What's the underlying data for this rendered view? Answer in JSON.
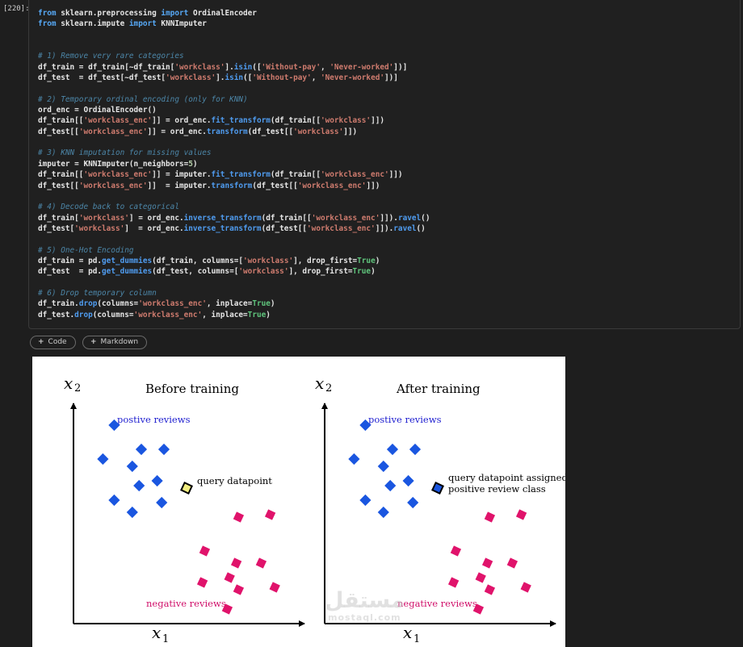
{
  "cell": {
    "execution_count": "[220]:",
    "code_lines": [
      [
        [
          "kw",
          "from "
        ],
        [
          "t",
          "sklearn.preprocessing "
        ],
        [
          "kw",
          "import "
        ],
        [
          "t",
          "OrdinalEncoder"
        ]
      ],
      [
        [
          "kw",
          "from "
        ],
        [
          "t",
          "sklearn.impute "
        ],
        [
          "kw",
          "import "
        ],
        [
          "t",
          "KNNImputer"
        ]
      ],
      [],
      [],
      [
        [
          "cm",
          "# 1) Remove very rare categories"
        ]
      ],
      [
        [
          "t",
          "df_train = df_train[~df_train["
        ],
        [
          "str",
          "'workclass'"
        ],
        [
          "t",
          "]."
        ],
        [
          "fn",
          "isin"
        ],
        [
          "t",
          "(["
        ],
        [
          "str",
          "'Without-pay'"
        ],
        [
          "t",
          ", "
        ],
        [
          "str",
          "'Never-worked'"
        ],
        [
          "t",
          "])]"
        ]
      ],
      [
        [
          "t",
          "df_test  = df_test[~df_test["
        ],
        [
          "str",
          "'workclass'"
        ],
        [
          "t",
          "]."
        ],
        [
          "fn",
          "isin"
        ],
        [
          "t",
          "(["
        ],
        [
          "str",
          "'Without-pay'"
        ],
        [
          "t",
          ", "
        ],
        [
          "str",
          "'Never-worked'"
        ],
        [
          "t",
          "])]"
        ]
      ],
      [],
      [
        [
          "cm",
          "# 2) Temporary ordinal encoding (only for KNN)"
        ]
      ],
      [
        [
          "t",
          "ord_enc = OrdinalEncoder()"
        ]
      ],
      [
        [
          "t",
          "df_train[["
        ],
        [
          "str",
          "'workclass_enc'"
        ],
        [
          "t",
          "]] = ord_enc."
        ],
        [
          "fn",
          "fit_transform"
        ],
        [
          "t",
          "(df_train[["
        ],
        [
          "str",
          "'workclass'"
        ],
        [
          "t",
          "]])"
        ]
      ],
      [
        [
          "t",
          "df_test[["
        ],
        [
          "str",
          "'workclass_enc'"
        ],
        [
          "t",
          "]] = ord_enc."
        ],
        [
          "fn",
          "transform"
        ],
        [
          "t",
          "(df_test[["
        ],
        [
          "str",
          "'workclass'"
        ],
        [
          "t",
          "]])"
        ]
      ],
      [],
      [
        [
          "cm",
          "# 3) KNN imputation for missing values"
        ]
      ],
      [
        [
          "t",
          "imputer = KNNImputer(n_neighbors="
        ],
        [
          "num",
          "5"
        ],
        [
          "t",
          ")"
        ]
      ],
      [
        [
          "t",
          "df_train[["
        ],
        [
          "str",
          "'workclass_enc'"
        ],
        [
          "t",
          "]] = imputer."
        ],
        [
          "fn",
          "fit_transform"
        ],
        [
          "t",
          "(df_train[["
        ],
        [
          "str",
          "'workclass_enc'"
        ],
        [
          "t",
          "]])"
        ]
      ],
      [
        [
          "t",
          "df_test[["
        ],
        [
          "str",
          "'workclass_enc'"
        ],
        [
          "t",
          "]]  = imputer."
        ],
        [
          "fn",
          "transform"
        ],
        [
          "t",
          "(df_test[["
        ],
        [
          "str",
          "'workclass_enc'"
        ],
        [
          "t",
          "]])"
        ]
      ],
      [],
      [
        [
          "cm",
          "# 4) Decode back to categorical"
        ]
      ],
      [
        [
          "t",
          "df_train["
        ],
        [
          "str",
          "'workclass'"
        ],
        [
          "t",
          "] = ord_enc."
        ],
        [
          "fn",
          "inverse_transform"
        ],
        [
          "t",
          "(df_train[["
        ],
        [
          "str",
          "'workclass_enc'"
        ],
        [
          "t",
          "]])."
        ],
        [
          "fn",
          "ravel"
        ],
        [
          "t",
          "()"
        ]
      ],
      [
        [
          "t",
          "df_test["
        ],
        [
          "str",
          "'workclass'"
        ],
        [
          "t",
          "]  = ord_enc."
        ],
        [
          "fn",
          "inverse_transform"
        ],
        [
          "t",
          "(df_test[["
        ],
        [
          "str",
          "'workclass_enc'"
        ],
        [
          "t",
          "]])."
        ],
        [
          "fn",
          "ravel"
        ],
        [
          "t",
          "()"
        ]
      ],
      [],
      [
        [
          "cm",
          "# 5) One-Hot Encoding"
        ]
      ],
      [
        [
          "t",
          "df_train = pd."
        ],
        [
          "fn",
          "get_dummies"
        ],
        [
          "t",
          "(df_train, columns=["
        ],
        [
          "str",
          "'workclass'"
        ],
        [
          "t",
          "], drop_first="
        ],
        [
          "bool",
          "True"
        ],
        [
          "t",
          ")"
        ]
      ],
      [
        [
          "t",
          "df_test  = pd."
        ],
        [
          "fn",
          "get_dummies"
        ],
        [
          "t",
          "(df_test, columns=["
        ],
        [
          "str",
          "'workclass'"
        ],
        [
          "t",
          "], drop_first="
        ],
        [
          "bool",
          "True"
        ],
        [
          "t",
          ")"
        ]
      ],
      [],
      [
        [
          "cm",
          "# 6) Drop temporary column"
        ]
      ],
      [
        [
          "t",
          "df_train."
        ],
        [
          "fn",
          "drop"
        ],
        [
          "t",
          "(columns="
        ],
        [
          "str",
          "'workclass_enc'"
        ],
        [
          "t",
          ", inplace="
        ],
        [
          "bool",
          "True"
        ],
        [
          "t",
          ")"
        ]
      ],
      [
        [
          "t",
          "df_test."
        ],
        [
          "fn",
          "drop"
        ],
        [
          "t",
          "(columns="
        ],
        [
          "str",
          "'workclass_enc'"
        ],
        [
          "t",
          ", inplace="
        ],
        [
          "bool",
          "True"
        ],
        [
          "t",
          ")"
        ]
      ]
    ]
  },
  "toolbar": {
    "plus_icon": "+",
    "code_label": "Code",
    "markdown_label": "Markdown"
  },
  "colors": {
    "positive": "#1a56e0",
    "negative": "#e0136b",
    "query_before": "#f2ee80",
    "query_after": "#1a56e0"
  },
  "chart_data": [
    {
      "type": "scatter",
      "title": "Before training",
      "xlabel": "x1",
      "ylabel": "x2",
      "positive_label": "postive reviews",
      "negative_label": "negative reviews",
      "query_label": "query datapoint",
      "positive": [
        [
          18,
          82
        ],
        [
          13,
          68
        ],
        [
          30,
          72
        ],
        [
          40,
          72
        ],
        [
          26,
          65
        ],
        [
          29,
          57
        ],
        [
          37,
          59
        ],
        [
          18,
          51
        ],
        [
          26,
          46
        ],
        [
          39,
          50
        ]
      ],
      "negative": [
        [
          73,
          44
        ],
        [
          87,
          45
        ],
        [
          58,
          30
        ],
        [
          72,
          25
        ],
        [
          83,
          25
        ],
        [
          57,
          17
        ],
        [
          69,
          19
        ],
        [
          73,
          14
        ],
        [
          89,
          15
        ],
        [
          68,
          6
        ]
      ],
      "query": [
        50,
        56
      ]
    },
    {
      "type": "scatter",
      "title": "After training",
      "xlabel": "x1",
      "ylabel": "x2",
      "positive_label": "postive reviews",
      "negative_label": "negative reviews",
      "query_label": "query datapoint assigned to\npositive review class",
      "positive": [
        [
          18,
          82
        ],
        [
          13,
          68
        ],
        [
          30,
          72
        ],
        [
          40,
          72
        ],
        [
          26,
          65
        ],
        [
          29,
          57
        ],
        [
          37,
          59
        ],
        [
          18,
          51
        ],
        [
          26,
          46
        ],
        [
          39,
          50
        ]
      ],
      "negative": [
        [
          73,
          44
        ],
        [
          87,
          45
        ],
        [
          58,
          30
        ],
        [
          72,
          25
        ],
        [
          83,
          25
        ],
        [
          57,
          17
        ],
        [
          69,
          19
        ],
        [
          73,
          14
        ],
        [
          89,
          15
        ],
        [
          68,
          6
        ]
      ],
      "query": [
        50,
        56
      ]
    }
  ]
}
